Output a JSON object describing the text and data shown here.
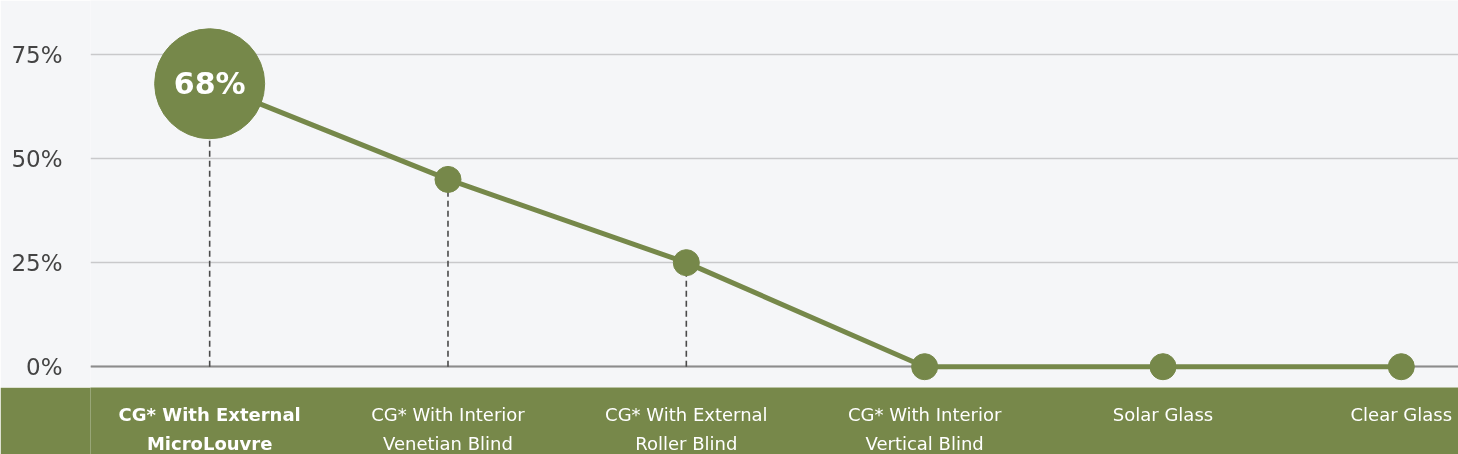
{
  "chart_data": {
    "type": "line",
    "categories": [
      "CG* With External MicroLouvre",
      "CG* With Interior Venetian Blind",
      "CG* With External Roller Blind",
      "CG* With Interior Vertical Blind",
      "Solar Glass",
      "Clear Glass"
    ],
    "series": [
      {
        "color": "#76884a",
        "values": [
          68,
          45,
          25,
          0,
          0,
          0
        ],
        "line_style": "solid",
        "marker": "none"
      },
      {
        "type": "lollipop",
        "color": "#76884a",
        "values": [
          68,
          45,
          25,
          0,
          0,
          0
        ],
        "sizes": [
          1,
          0.056,
          0.056,
          0.056,
          0.056,
          0.056
        ],
        "value_labels": [
          "68%",
          null,
          null,
          null,
          null,
          null
        ],
        "marker": "circle",
        "line_style": "dashed"
      }
    ],
    "ylim": [
      -5,
      88
    ],
    "yticks": [
      {
        "value": 0,
        "label": "0%"
      },
      {
        "value": 25,
        "label": "25%"
      },
      {
        "value": 50,
        "label": "50%"
      },
      {
        "value": 75,
        "label": "75%"
      }
    ],
    "grid": "y"
  }
}
